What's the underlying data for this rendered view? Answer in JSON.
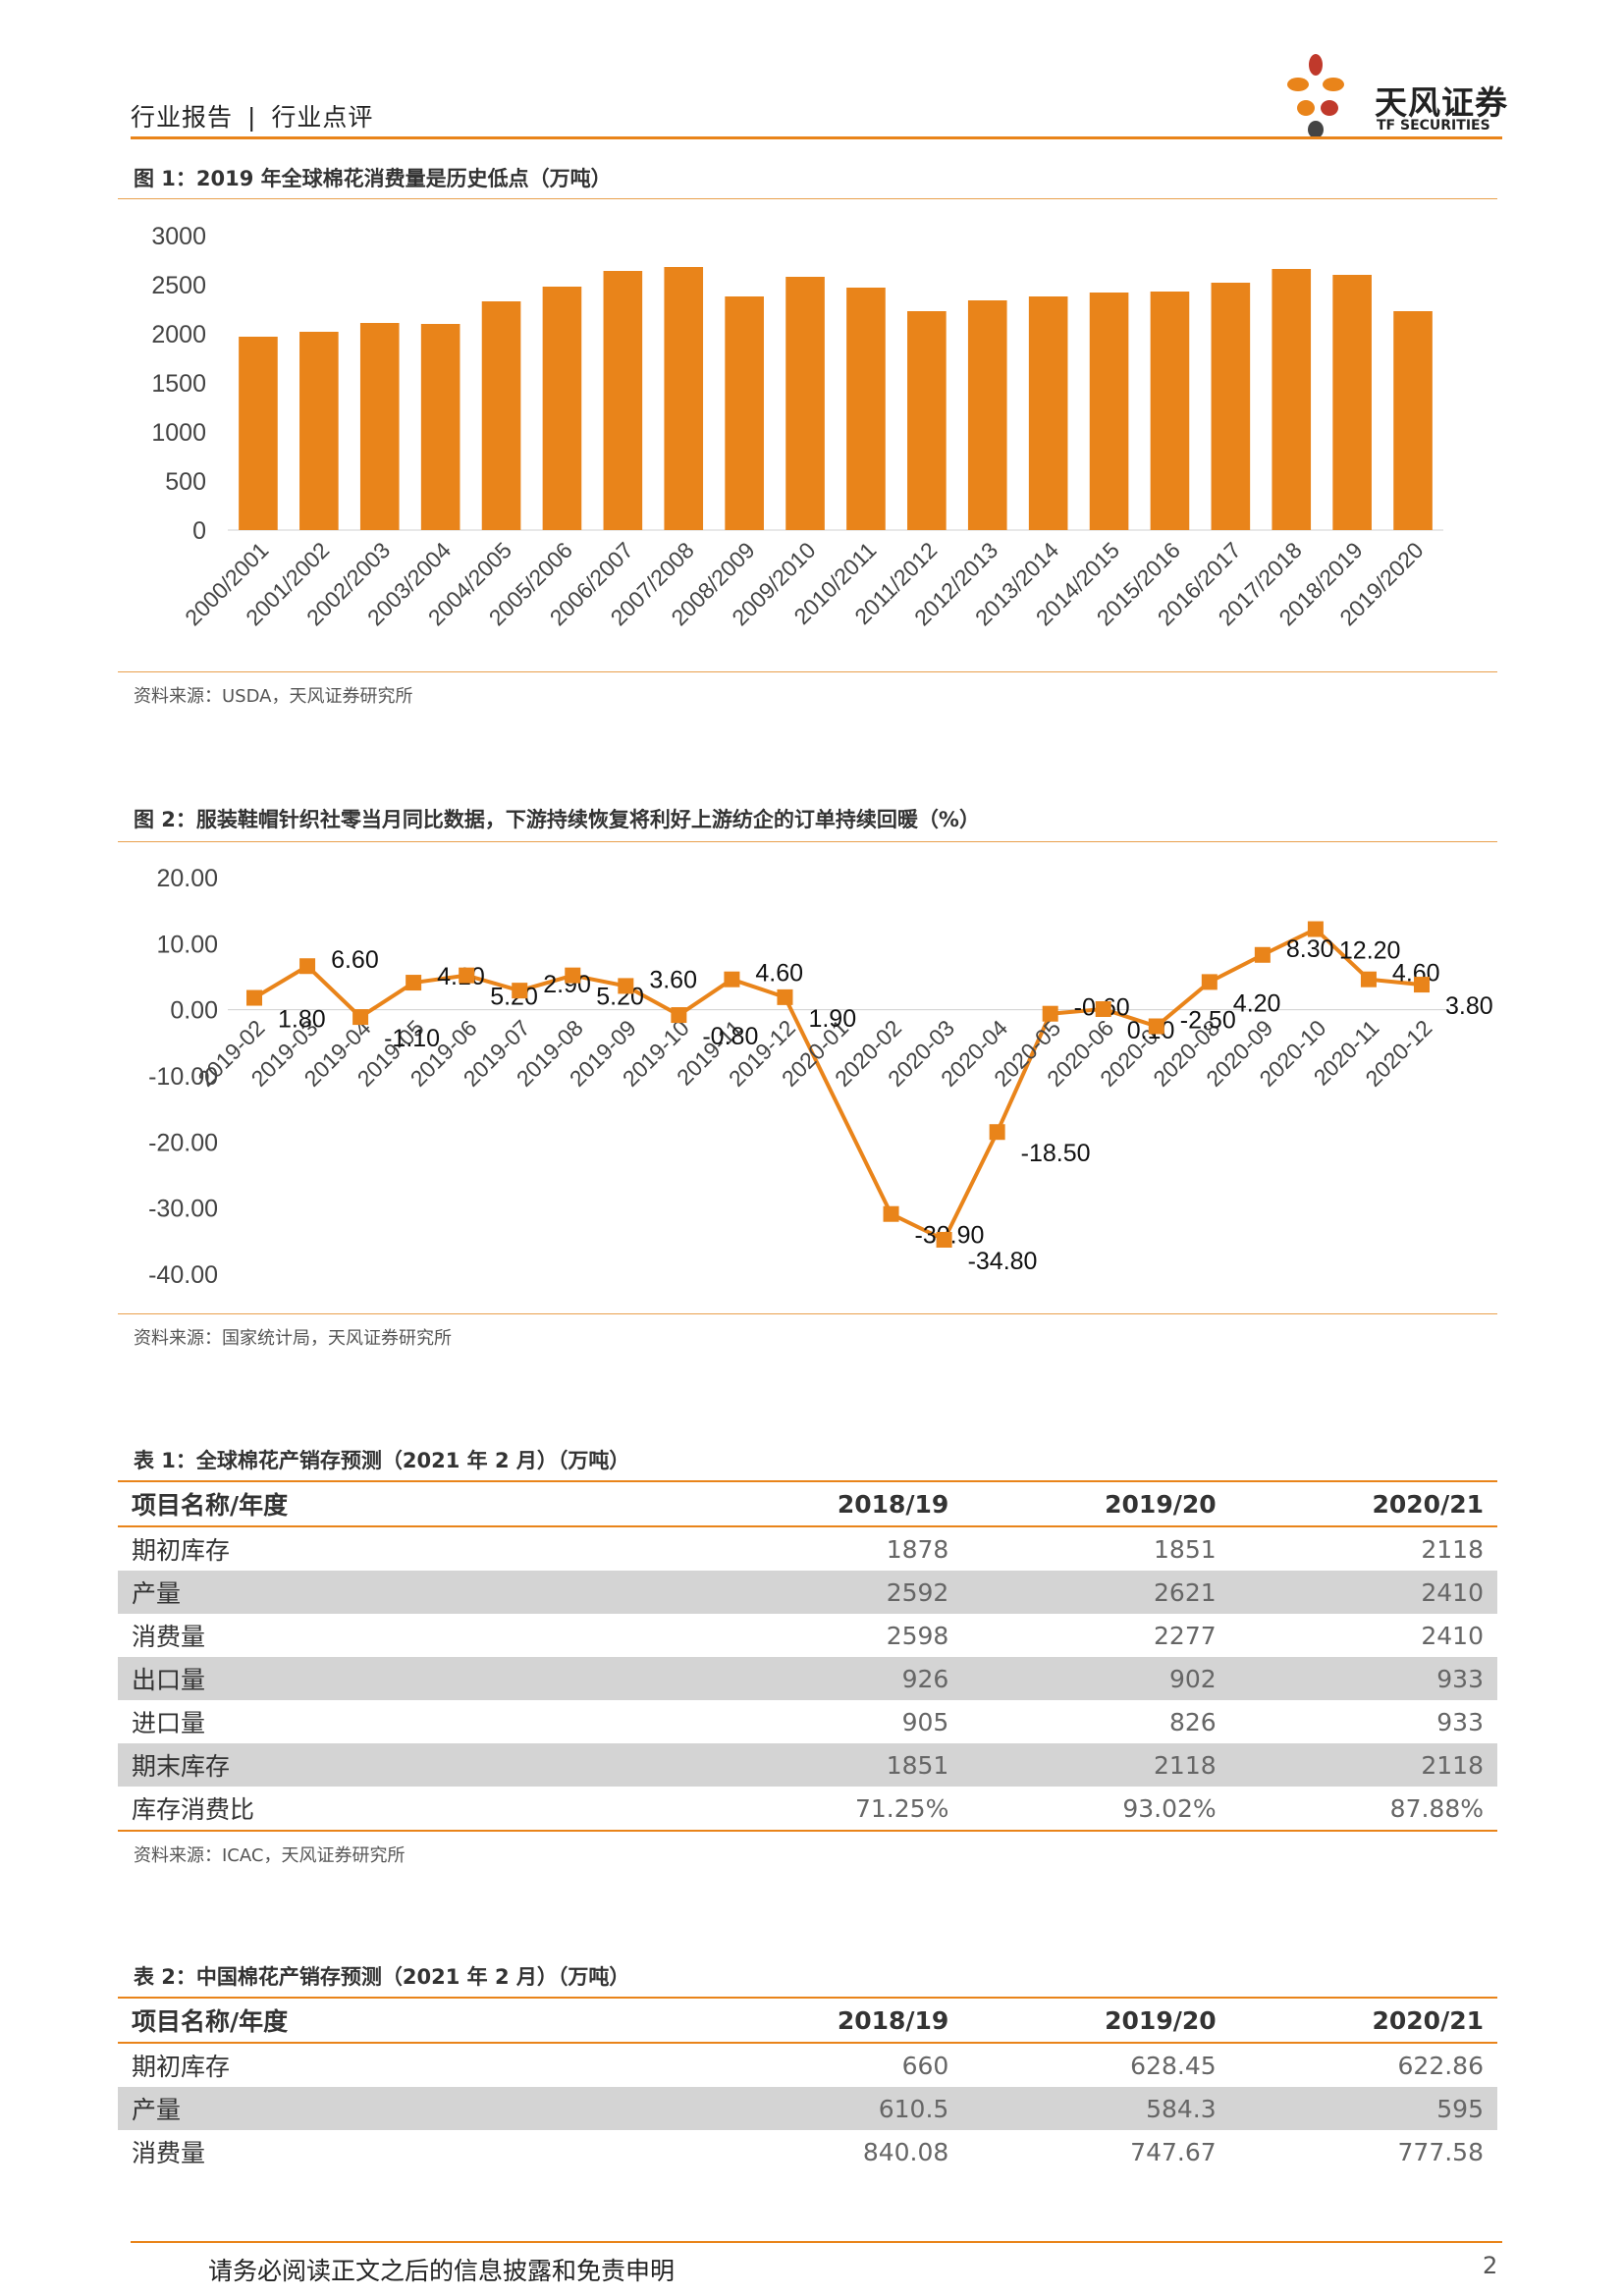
{
  "header": {
    "section": "行业报告",
    "separator": "|",
    "subsection": "行业点评",
    "brand_cn": "天风证券",
    "brand_en": "TF SECURITIES"
  },
  "colors": {
    "accent": "#e9841a",
    "shade": "#d4d4d4",
    "petal_red": "#c0392b",
    "petal_dark": "#444444"
  },
  "figure1": {
    "title": "图 1：2019 年全球棉花消费量是历史低点（万吨）",
    "source": "资料来源：USDA，天风证券研究所",
    "chart_data": {
      "type": "bar",
      "categories": [
        "2000/2001",
        "2001/2002",
        "2002/2003",
        "2003/2004",
        "2004/2005",
        "2005/2006",
        "2006/2007",
        "2007/2008",
        "2008/2009",
        "2009/2010",
        "2010/2011",
        "2011/2012",
        "2012/2013",
        "2013/2014",
        "2014/2015",
        "2015/2016",
        "2016/2017",
        "2017/2018",
        "2018/2019",
        "2019/2020"
      ],
      "values": [
        1970,
        2020,
        2110,
        2100,
        2330,
        2480,
        2640,
        2680,
        2380,
        2580,
        2470,
        2230,
        2340,
        2380,
        2420,
        2430,
        2520,
        2660,
        2600,
        2230
      ],
      "yticks": [
        "3000",
        "2500",
        "2000",
        "1500",
        "1000",
        "500",
        "0"
      ],
      "ylim": [
        0,
        3000
      ],
      "color": "#e9841a"
    }
  },
  "figure2": {
    "title": "图 2：服装鞋帽针织社零当月同比数据，下游持续恢复将利好上游纺企的订单持续回暖（%）",
    "source": "资料来源：国家统计局，天风证券研究所",
    "chart_data": {
      "type": "line",
      "categories": [
        "2019-02",
        "2019-03",
        "2019-04",
        "2019-05",
        "2019-06",
        "2019-07",
        "2019-08",
        "2019-09",
        "2019-10",
        "2019-11",
        "2019-12",
        "2020-01",
        "2020-02",
        "2020-03",
        "2020-04",
        "2020-05",
        "2020-06",
        "2020-07",
        "2020-08",
        "2020-09",
        "2020-10",
        "2020-11",
        "2020-12"
      ],
      "values": [
        1.8,
        6.6,
        -1.1,
        4.1,
        5.2,
        2.9,
        5.2,
        3.6,
        -0.8,
        4.6,
        1.9,
        null,
        -30.9,
        -34.8,
        -18.5,
        -0.6,
        0.1,
        -2.5,
        4.2,
        8.3,
        12.2,
        4.6,
        3.8
      ],
      "labels": [
        "1.80",
        "6.60",
        "-1.10",
        "4.10",
        "5.20",
        "2.90",
        "5.20",
        "3.60",
        "-0.80",
        "4.60",
        "1.90",
        "",
        "-30.90",
        "-34.80",
        "-18.50",
        "-0.60",
        "0.10",
        "-2.50",
        "4.20",
        "8.30",
        "12.20",
        "4.60",
        "3.80"
      ],
      "yticks": [
        "20.00",
        "10.00",
        "0.00",
        "-10.00",
        "-20.00",
        "-30.00",
        "-40.00"
      ],
      "ylim": [
        -40,
        20
      ],
      "color": "#e9841a"
    }
  },
  "table1": {
    "title": "表 1：全球棉花产销存预测（2021 年 2 月）（万吨）",
    "source": "资料来源：ICAC，天风证券研究所",
    "headers": [
      "项目名称/年度",
      "2018/19",
      "2019/20",
      "2020/21"
    ],
    "rows": [
      [
        "期初库存",
        "1878",
        "1851",
        "2118"
      ],
      [
        "产量",
        "2592",
        "2621",
        "2410"
      ],
      [
        "消费量",
        "2598",
        "2277",
        "2410"
      ],
      [
        "出口量",
        "926",
        "902",
        "933"
      ],
      [
        "进口量",
        "905",
        "826",
        "933"
      ],
      [
        "期末库存",
        "1851",
        "2118",
        "2118"
      ],
      [
        "库存消费比",
        "71.25%",
        "93.02%",
        "87.88%"
      ]
    ]
  },
  "table2": {
    "title": "表 2：中国棉花产销存预测（2021 年 2 月）（万吨）",
    "headers": [
      "项目名称/年度",
      "2018/19",
      "2019/20",
      "2020/21"
    ],
    "rows": [
      [
        "期初库存",
        "660",
        "628.45",
        "622.86"
      ],
      [
        "产量",
        "610.5",
        "584.3",
        "595"
      ],
      [
        "消费量",
        "840.08",
        "747.67",
        "777.58"
      ]
    ]
  },
  "footer": {
    "disclaimer": "请务必阅读正文之后的信息披露和免责申明",
    "page": "2"
  }
}
